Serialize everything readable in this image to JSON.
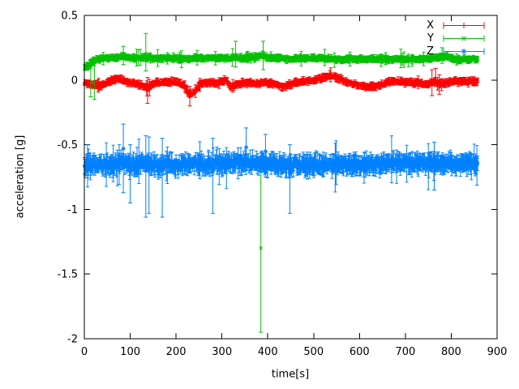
{
  "chart_data": {
    "type": "scatter",
    "style": "points-with-errorbars",
    "title": "",
    "xlabel": "time[s]",
    "ylabel": "acceleration [g]",
    "xlim": [
      0,
      900
    ],
    "ylim": [
      -2,
      0.5
    ],
    "xticks": [
      0,
      100,
      200,
      300,
      400,
      500,
      600,
      700,
      800,
      900
    ],
    "yticks": [
      {
        "v": 0.5,
        "label": "0.5"
      },
      {
        "v": 0,
        "label": "0"
      },
      {
        "v": -0.5,
        "label": "-0.5"
      },
      {
        "v": -1,
        "label": "-1"
      },
      {
        "v": -1.5,
        "label": "-1.5"
      },
      {
        "v": -2,
        "label": "-2"
      }
    ],
    "grid": false,
    "legend_position": "top-right-inside",
    "background": "#ffffff",
    "border_color": "#000000",
    "point_step_s": 1,
    "t_end": 858,
    "noise_seed": 7,
    "series": [
      {
        "name": "X",
        "color": "#ff0000",
        "marker": "plus",
        "mean_level": -0.02,
        "anchors": [
          [
            0,
            -0.02
          ],
          [
            20,
            -0.04
          ],
          [
            40,
            -0.04
          ],
          [
            55,
            -0.01
          ],
          [
            70,
            0.01
          ],
          [
            85,
            0.0
          ],
          [
            100,
            -0.02
          ],
          [
            115,
            -0.03
          ],
          [
            128,
            -0.05
          ],
          [
            138,
            -0.06
          ],
          [
            148,
            -0.03
          ],
          [
            160,
            -0.02
          ],
          [
            175,
            -0.02
          ],
          [
            190,
            -0.01
          ],
          [
            205,
            -0.02
          ],
          [
            218,
            -0.04
          ],
          [
            228,
            -0.11
          ],
          [
            238,
            -0.1
          ],
          [
            248,
            -0.05
          ],
          [
            260,
            -0.02
          ],
          [
            275,
            -0.02
          ],
          [
            290,
            -0.03
          ],
          [
            300,
            -0.01
          ],
          [
            310,
            0.0
          ],
          [
            320,
            -0.06
          ],
          [
            332,
            -0.03
          ],
          [
            345,
            -0.02
          ],
          [
            360,
            -0.02
          ],
          [
            375,
            -0.03
          ],
          [
            390,
            -0.02
          ],
          [
            405,
            -0.02
          ],
          [
            420,
            -0.04
          ],
          [
            435,
            -0.05
          ],
          [
            448,
            -0.03
          ],
          [
            460,
            -0.02
          ],
          [
            475,
            -0.01
          ],
          [
            490,
            -0.01
          ],
          [
            505,
            0.0
          ],
          [
            520,
            0.02
          ],
          [
            532,
            0.035
          ],
          [
            545,
            0.03
          ],
          [
            558,
            0.01
          ],
          [
            570,
            -0.01
          ],
          [
            585,
            -0.03
          ],
          [
            600,
            -0.04
          ],
          [
            615,
            -0.05
          ],
          [
            630,
            -0.05
          ],
          [
            645,
            -0.04
          ],
          [
            658,
            -0.02
          ],
          [
            672,
            -0.01
          ],
          [
            685,
            -0.01
          ],
          [
            700,
            -0.02
          ],
          [
            715,
            -0.02
          ],
          [
            730,
            -0.02
          ],
          [
            745,
            -0.03
          ],
          [
            755,
            -0.02
          ],
          [
            765,
            -0.01
          ],
          [
            775,
            -0.03
          ],
          [
            790,
            -0.02
          ],
          [
            805,
            -0.01
          ],
          [
            820,
            -0.01
          ],
          [
            835,
            -0.01
          ],
          [
            850,
            -0.01
          ],
          [
            858,
            -0.01
          ]
        ],
        "noise": {
          "jitter": 0.01,
          "err_base": 0.01,
          "err_var": 0.02,
          "spike_p": 0.04,
          "spike_extra": 0.04
        },
        "outliers": [
          {
            "t": 138,
            "y": -0.07,
            "lo": -0.18,
            "hi": 0.02
          },
          {
            "t": 230,
            "y": -0.13,
            "lo": -0.2,
            "hi": -0.05
          },
          {
            "t": 758,
            "y": -0.02,
            "lo": -0.12,
            "hi": 0.08
          },
          {
            "t": 766,
            "y": 0.02,
            "lo": -0.05,
            "hi": 0.09
          },
          {
            "t": 774,
            "y": -0.04,
            "lo": -0.11,
            "hi": 0.04
          }
        ]
      },
      {
        "name": "Y",
        "color": "#00c000",
        "marker": "cross",
        "mean_level": 0.165,
        "anchors": [
          [
            0,
            0.1
          ],
          [
            8,
            0.11
          ],
          [
            18,
            0.14
          ],
          [
            30,
            0.16
          ],
          [
            45,
            0.17
          ],
          [
            60,
            0.17
          ],
          [
            75,
            0.175
          ],
          [
            85,
            0.19
          ],
          [
            95,
            0.175
          ],
          [
            110,
            0.17
          ],
          [
            125,
            0.17
          ],
          [
            135,
            0.175
          ],
          [
            150,
            0.17
          ],
          [
            165,
            0.17
          ],
          [
            180,
            0.17
          ],
          [
            195,
            0.17
          ],
          [
            210,
            0.165
          ],
          [
            225,
            0.165
          ],
          [
            240,
            0.17
          ],
          [
            255,
            0.17
          ],
          [
            270,
            0.17
          ],
          [
            285,
            0.17
          ],
          [
            300,
            0.17
          ],
          [
            315,
            0.17
          ],
          [
            330,
            0.175
          ],
          [
            345,
            0.17
          ],
          [
            360,
            0.175
          ],
          [
            375,
            0.18
          ],
          [
            388,
            0.19
          ],
          [
            400,
            0.175
          ],
          [
            415,
            0.17
          ],
          [
            430,
            0.17
          ],
          [
            445,
            0.165
          ],
          [
            460,
            0.165
          ],
          [
            475,
            0.17
          ],
          [
            490,
            0.17
          ],
          [
            505,
            0.17
          ],
          [
            520,
            0.17
          ],
          [
            535,
            0.165
          ],
          [
            550,
            0.16
          ],
          [
            565,
            0.16
          ],
          [
            580,
            0.165
          ],
          [
            595,
            0.165
          ],
          [
            610,
            0.16
          ],
          [
            625,
            0.16
          ],
          [
            640,
            0.165
          ],
          [
            655,
            0.16
          ],
          [
            670,
            0.16
          ],
          [
            685,
            0.165
          ],
          [
            700,
            0.16
          ],
          [
            715,
            0.16
          ],
          [
            730,
            0.16
          ],
          [
            745,
            0.165
          ],
          [
            760,
            0.17
          ],
          [
            775,
            0.18
          ],
          [
            788,
            0.185
          ],
          [
            800,
            0.17
          ],
          [
            815,
            0.16
          ],
          [
            830,
            0.16
          ],
          [
            845,
            0.16
          ],
          [
            858,
            0.16
          ]
        ],
        "noise": {
          "jitter": 0.009,
          "err_base": 0.01,
          "err_var": 0.018,
          "spike_p": 0.04,
          "spike_extra": 0.05
        },
        "outliers": [
          {
            "t": 14,
            "y": 0.1,
            "lo": -0.13,
            "hi": 0.16
          },
          {
            "t": 22,
            "y": 0.12,
            "lo": -0.15,
            "hi": 0.18
          },
          {
            "t": 85,
            "y": 0.19,
            "lo": 0.12,
            "hi": 0.26
          },
          {
            "t": 134,
            "y": 0.17,
            "lo": 0.07,
            "hi": 0.36
          },
          {
            "t": 330,
            "y": 0.18,
            "lo": 0.1,
            "hi": 0.3
          },
          {
            "t": 390,
            "y": 0.18,
            "lo": 0.08,
            "hi": 0.3
          },
          {
            "t": 385,
            "y": -1.3,
            "lo": -1.95,
            "hi": -0.66
          },
          {
            "t": 780,
            "y": 0.19,
            "lo": 0.13,
            "hi": 0.25
          }
        ]
      },
      {
        "name": "Z",
        "color": "#0080ff",
        "marker": "star",
        "mean_level": -0.65,
        "anchors": [
          [
            0,
            -0.67
          ],
          [
            10,
            -0.66
          ],
          [
            25,
            -0.65
          ],
          [
            40,
            -0.65
          ],
          [
            55,
            -0.66
          ],
          [
            70,
            -0.65
          ],
          [
            85,
            -0.64
          ],
          [
            100,
            -0.66
          ],
          [
            115,
            -0.65
          ],
          [
            130,
            -0.64
          ],
          [
            145,
            -0.65
          ],
          [
            160,
            -0.66
          ],
          [
            175,
            -0.65
          ],
          [
            190,
            -0.65
          ],
          [
            205,
            -0.66
          ],
          [
            220,
            -0.65
          ],
          [
            235,
            -0.64
          ],
          [
            250,
            -0.645
          ],
          [
            265,
            -0.65
          ],
          [
            280,
            -0.65
          ],
          [
            295,
            -0.64
          ],
          [
            310,
            -0.65
          ],
          [
            325,
            -0.64
          ],
          [
            340,
            -0.63
          ],
          [
            355,
            -0.635
          ],
          [
            370,
            -0.645
          ],
          [
            385,
            -0.64
          ],
          [
            400,
            -0.65
          ],
          [
            415,
            -0.65
          ],
          [
            430,
            -0.655
          ],
          [
            445,
            -0.66
          ],
          [
            460,
            -0.65
          ],
          [
            475,
            -0.655
          ],
          [
            490,
            -0.66
          ],
          [
            505,
            -0.65
          ],
          [
            520,
            -0.655
          ],
          [
            535,
            -0.66
          ],
          [
            550,
            -0.65
          ],
          [
            565,
            -0.655
          ],
          [
            580,
            -0.65
          ],
          [
            595,
            -0.655
          ],
          [
            610,
            -0.66
          ],
          [
            625,
            -0.65
          ],
          [
            640,
            -0.65
          ],
          [
            655,
            -0.645
          ],
          [
            670,
            -0.64
          ],
          [
            685,
            -0.64
          ],
          [
            700,
            -0.64
          ],
          [
            715,
            -0.64
          ],
          [
            730,
            -0.64
          ],
          [
            745,
            -0.64
          ],
          [
            760,
            -0.65
          ],
          [
            775,
            -0.645
          ],
          [
            790,
            -0.64
          ],
          [
            805,
            -0.64
          ],
          [
            820,
            -0.645
          ],
          [
            835,
            -0.65
          ],
          [
            850,
            -0.64
          ],
          [
            858,
            -0.64
          ]
        ],
        "noise": {
          "jitter": 0.032,
          "err_base": 0.025,
          "err_var": 0.055,
          "spike_p": 0.06,
          "spike_extra": 0.12
        },
        "outliers": [
          {
            "t": 85,
            "y": -0.53,
            "lo": -0.87,
            "hi": -0.34
          },
          {
            "t": 100,
            "y": -0.7,
            "lo": -0.95,
            "hi": -0.5
          },
          {
            "t": 134,
            "y": -0.7,
            "lo": -1.06,
            "hi": -0.43
          },
          {
            "t": 141,
            "y": -0.68,
            "lo": -1.03,
            "hi": -0.44
          },
          {
            "t": 170,
            "y": -0.7,
            "lo": -1.06,
            "hi": -0.45
          },
          {
            "t": 280,
            "y": -0.7,
            "lo": -1.03,
            "hi": -0.45
          },
          {
            "t": 353,
            "y": -0.52,
            "lo": -0.7,
            "hi": -0.37
          },
          {
            "t": 395,
            "y": -0.55,
            "lo": -0.75,
            "hi": -0.42
          },
          {
            "t": 448,
            "y": -0.72,
            "lo": -1.03,
            "hi": -0.5
          },
          {
            "t": 763,
            "y": -0.6,
            "lo": -0.85,
            "hi": -0.48
          }
        ]
      }
    ]
  }
}
